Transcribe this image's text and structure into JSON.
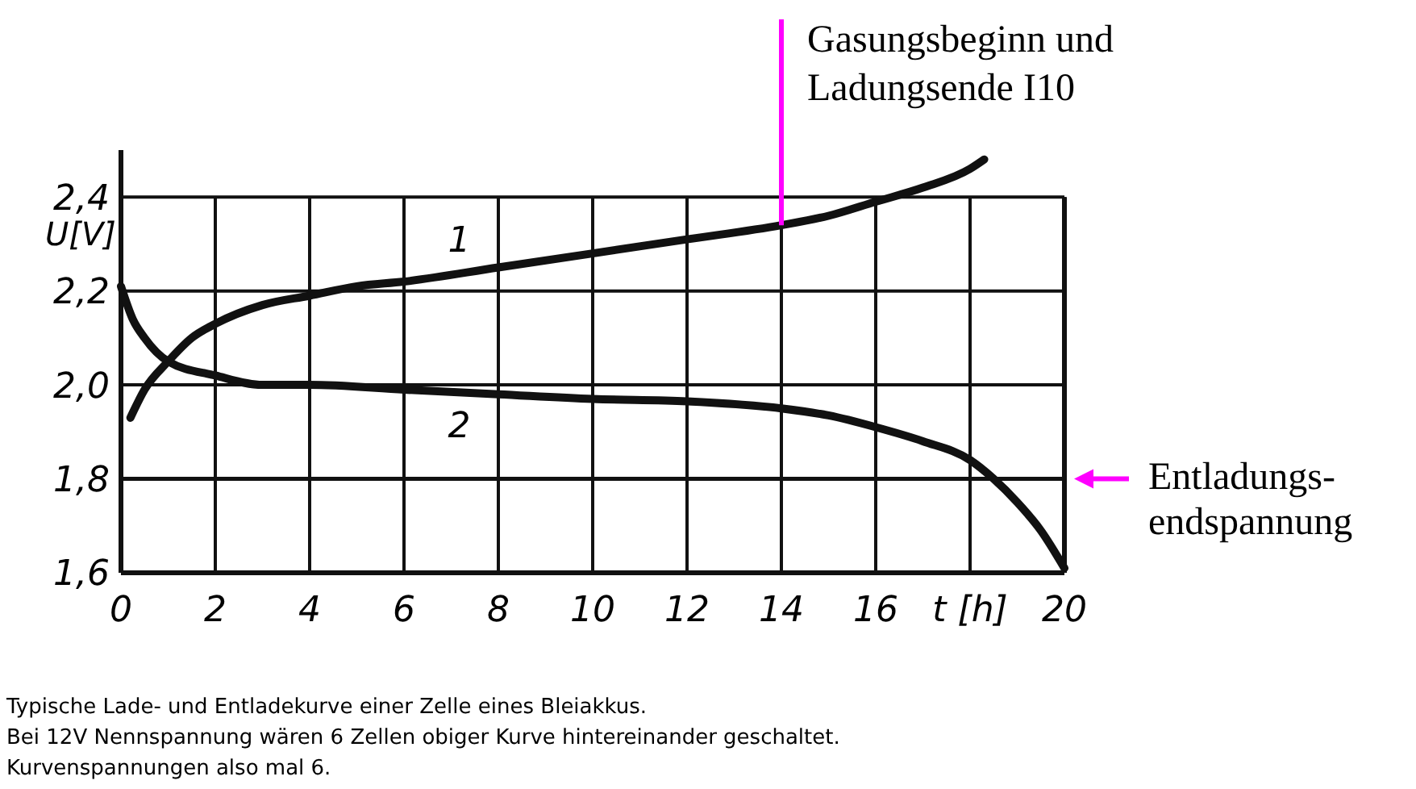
{
  "chart_data": {
    "type": "line",
    "xlabel": "t [h]",
    "ylabel": "U[V]",
    "xlim": [
      0,
      20
    ],
    "ylim": [
      1.6,
      2.5
    ],
    "xticks": [
      0,
      2,
      4,
      6,
      8,
      10,
      12,
      14,
      16,
      {
        "value": 18,
        "label": null
      },
      20
    ],
    "yticks": [
      {
        "value": 1.6,
        "label": "1,6"
      },
      {
        "value": 1.8,
        "label": "1,8"
      },
      {
        "value": 2.0,
        "label": "2,0"
      },
      {
        "value": 2.2,
        "label": "2,2"
      },
      {
        "value": 2.4,
        "label": "2,4"
      }
    ],
    "grid": true,
    "line_style": "solid",
    "ref_lines": [
      {
        "axis": "y",
        "value": 1.8,
        "label": "Entladungs-\nendspannung",
        "color": "#111111"
      }
    ],
    "series": [
      {
        "name": "1",
        "color": "#111111",
        "x": [
          0.2,
          0.5,
          1,
          1.5,
          2,
          3,
          4,
          5,
          6,
          8,
          10,
          12,
          14,
          15,
          16,
          17,
          18,
          18.3
        ],
        "values": [
          1.93,
          1.99,
          2.05,
          2.1,
          2.13,
          2.17,
          2.19,
          2.21,
          2.22,
          2.25,
          2.28,
          2.31,
          2.34,
          2.36,
          2.39,
          2.42,
          2.46,
          2.48
        ]
      },
      {
        "name": "2",
        "color": "#111111",
        "x": [
          0,
          0.25,
          0.5,
          1,
          2,
          3,
          4,
          6,
          8,
          10,
          12,
          14,
          15,
          16,
          17,
          18,
          18.5,
          19,
          19.5,
          20
        ],
        "values": [
          2.21,
          2.14,
          2.1,
          2.05,
          2.02,
          2.0,
          2.0,
          1.99,
          1.98,
          1.97,
          1.965,
          1.95,
          1.935,
          1.91,
          1.88,
          1.84,
          1.8,
          1.75,
          1.69,
          1.61
        ]
      }
    ],
    "annotations": [
      {
        "text": "Gasungsbeginn und\nLadungsende I10",
        "x": 14,
        "y": 2.34
      },
      "Typische Lade- und Entladekurve einer Zelle eines Bleiakkus.",
      "Bei 12V Nennspannung wären 6 Zellen obiger Kurve hintereinander geschaltet.",
      "Kurvenspannungen also mal 6."
    ]
  }
}
